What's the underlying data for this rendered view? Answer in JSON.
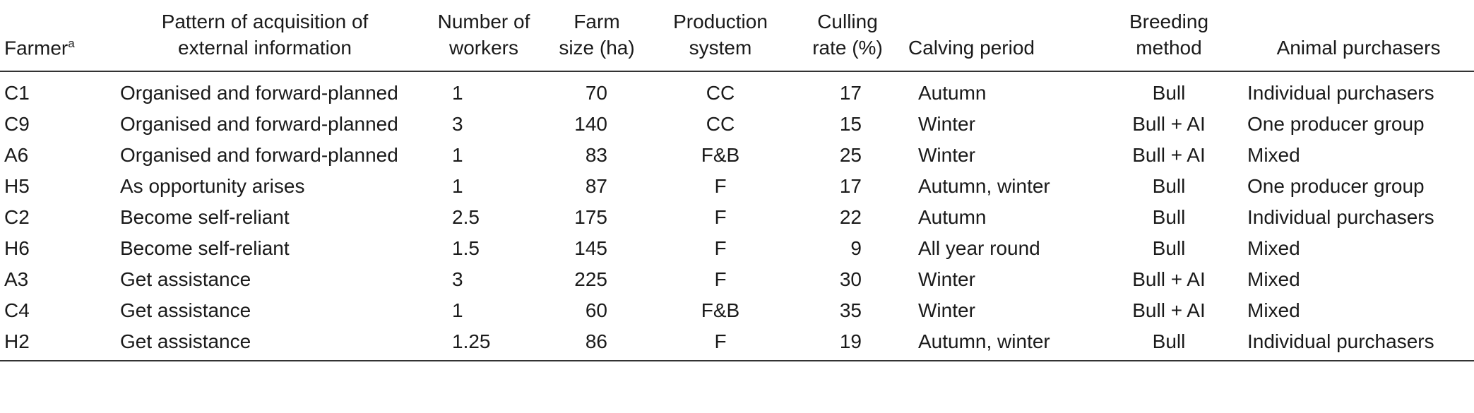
{
  "table": {
    "headers": [
      {
        "lines": [
          "Farmer"
        ],
        "sup": "a"
      },
      {
        "lines": [
          "Pattern of acquisition of",
          "external information"
        ]
      },
      {
        "lines": [
          "Number of",
          "workers"
        ]
      },
      {
        "lines": [
          "Farm",
          "size (ha)"
        ]
      },
      {
        "lines": [
          "Production",
          "system"
        ]
      },
      {
        "lines": [
          "Culling",
          "rate (%)"
        ]
      },
      {
        "lines": [
          "Calving period"
        ]
      },
      {
        "lines": [
          "Breeding",
          "method"
        ]
      },
      {
        "lines": [
          "Animal purchasers"
        ]
      }
    ],
    "rows": [
      [
        "C1",
        "Organised and forward-planned",
        "1",
        "70",
        "CC",
        "17",
        "Autumn",
        "Bull",
        "Individual purchasers"
      ],
      [
        "C9",
        "Organised and forward-planned",
        "3",
        "140",
        "CC",
        "15",
        "Winter",
        "Bull + AI",
        "One producer group"
      ],
      [
        "A6",
        "Organised and forward-planned",
        "1",
        "83",
        "F&B",
        "25",
        "Winter",
        "Bull + AI",
        "Mixed"
      ],
      [
        "H5",
        "As opportunity arises",
        "1",
        "87",
        "F",
        "17",
        "Autumn, winter",
        "Bull",
        "One producer group"
      ],
      [
        "C2",
        "Become self-reliant",
        "2.5",
        "175",
        "F",
        "22",
        "Autumn",
        "Bull",
        "Individual purchasers"
      ],
      [
        "H6",
        "Become self-reliant",
        "1.5",
        "145",
        "F",
        "9",
        "All year round",
        "Bull",
        "Mixed"
      ],
      [
        "A3",
        "Get assistance",
        "3",
        "225",
        "F",
        "30",
        "Winter",
        "Bull + AI",
        "Mixed"
      ],
      [
        "C4",
        "Get assistance",
        "1",
        "60",
        "F&B",
        "35",
        "Winter",
        "Bull + AI",
        "Mixed"
      ],
      [
        "H2",
        "Get assistance",
        "1.25",
        "86",
        "F",
        "19",
        "Autumn, winter",
        "Bull",
        "Individual purchasers"
      ]
    ]
  }
}
